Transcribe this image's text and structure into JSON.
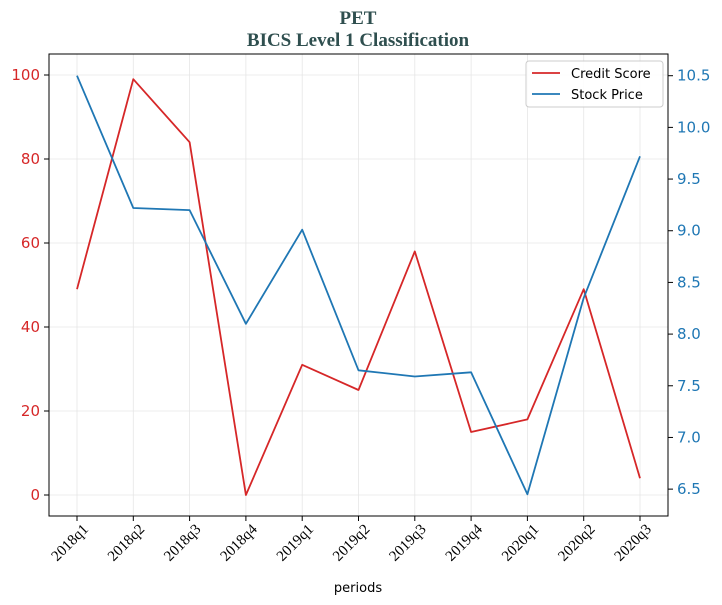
{
  "chart_data": {
    "type": "line",
    "title": "PET",
    "subtitle": "BICS Level 1 Classification",
    "xlabel": "periods",
    "categories": [
      "2018q1",
      "2018q2",
      "2018q3",
      "2018q4",
      "2019q1",
      "2019q2",
      "2019q3",
      "2019q4",
      "2020q1",
      "2020q2",
      "2020q3"
    ],
    "series": [
      {
        "name": "Credit Score",
        "axis": "left",
        "color": "#d62728",
        "values": [
          49,
          99,
          84,
          0,
          31,
          25,
          58,
          15,
          18,
          49,
          4
        ]
      },
      {
        "name": "Stock Price",
        "axis": "right",
        "color": "#1f77b4",
        "values": [
          10.5,
          9.22,
          9.2,
          8.1,
          9.01,
          7.65,
          7.59,
          7.63,
          6.45,
          8.35,
          9.72
        ]
      }
    ],
    "y_left": {
      "ylim": [
        -5,
        105
      ],
      "ticks": [
        0,
        20,
        40,
        60,
        80,
        100
      ],
      "color": "#d62728"
    },
    "y_right": {
      "ylim": [
        6.24,
        10.71
      ],
      "ticks": [
        "6.5",
        "7.0",
        "7.5",
        "8.0",
        "8.5",
        "9.0",
        "9.5",
        "10.0",
        "10.5"
      ],
      "color": "#1f77b4"
    },
    "grid": true,
    "legend_position": "top-right"
  }
}
